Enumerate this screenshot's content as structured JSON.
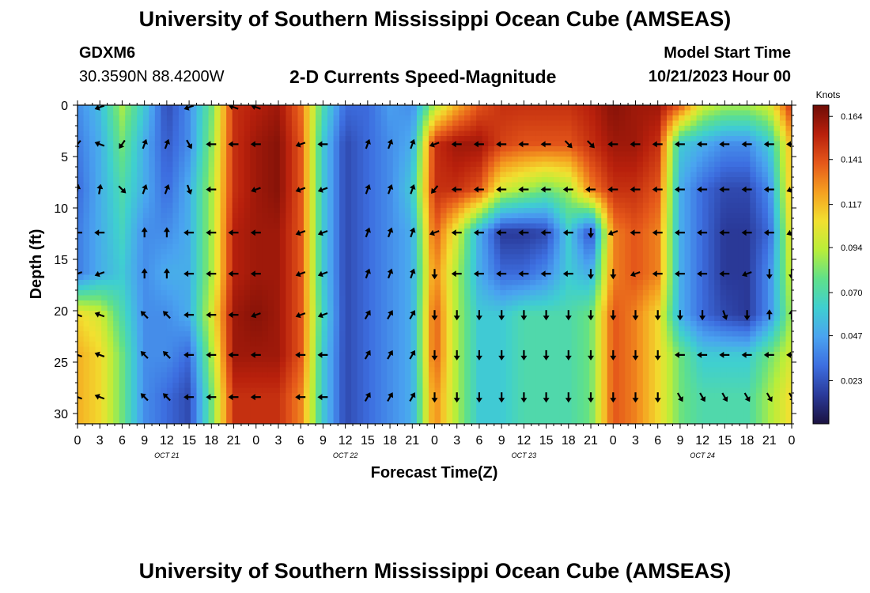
{
  "header": {
    "title": "University of Southern Mississippi Ocean Cube (AMSEAS)",
    "station_id": "GDXM6",
    "station_coords": "30.3590N  88.4200W",
    "subtitle": "2-D Currents Speed-Magnitude",
    "start_label": "Model Start Time",
    "start_value": "10/21/2023 Hour 00"
  },
  "footer": {
    "title": "University of Southern Mississippi Ocean Cube (AMSEAS)"
  },
  "chart_data": {
    "type": "heatmap",
    "title": "2-D Currents Speed-Magnitude",
    "xlabel": "Forecast Time(Z)",
    "ylabel": "Depth (ft)",
    "x_tick_labels": [
      "0",
      "3",
      "6",
      "9",
      "12",
      "15",
      "18",
      "21",
      "0",
      "3",
      "6",
      "9",
      "12",
      "15",
      "18",
      "21",
      "0",
      "3",
      "6",
      "9",
      "12",
      "15",
      "18",
      "21",
      "0",
      "3",
      "6",
      "9",
      "12",
      "15",
      "18",
      "21",
      "0"
    ],
    "date_labels": [
      "OCT 21",
      "OCT 22",
      "OCT 23",
      "OCT 24"
    ],
    "xlim_hours": [
      0,
      96
    ],
    "ylim_ft": [
      0,
      31
    ],
    "y_ticks": [
      0,
      5,
      10,
      15,
      20,
      25,
      30
    ],
    "colorbar": {
      "unit": "Knots",
      "ticks": [
        "0.164",
        "0.141",
        "0.117",
        "0.094",
        "0.070",
        "0.047",
        "0.023"
      ],
      "range": [
        0,
        0.17
      ],
      "colors": [
        "#1b1240",
        "#2a3a9a",
        "#3d6ee0",
        "#4aa3f0",
        "#3fcfd0",
        "#5fe08a",
        "#b8ee3a",
        "#f2e030",
        "#f5a020",
        "#e5581a",
        "#b8200c",
        "#6e0c06"
      ]
    },
    "depth_levels_ft": [
      0,
      3.8,
      8.2,
      12.4,
      16.4,
      20.4,
      24.3,
      28.4
    ],
    "time_hours": [
      0,
      3,
      6,
      9,
      12,
      15,
      18,
      21,
      24,
      27,
      30,
      33,
      36,
      39,
      42,
      45,
      48,
      51,
      54,
      57,
      60,
      63,
      66,
      69,
      72,
      75,
      78,
      81,
      84,
      87,
      90,
      93,
      96
    ],
    "speed_knots": [
      [
        0.04,
        0.055,
        0.09,
        0.06,
        0.02,
        0.04,
        0.08,
        0.15,
        0.155,
        0.16,
        0.135,
        0.07,
        0.03,
        0.03,
        0.045,
        0.04,
        0.09,
        0.12,
        0.14,
        0.15,
        0.15,
        0.15,
        0.15,
        0.155,
        0.165,
        0.16,
        0.16,
        0.14,
        0.1,
        0.09,
        0.09,
        0.1,
        0.15
      ],
      [
        0.035,
        0.05,
        0.08,
        0.05,
        0.025,
        0.04,
        0.085,
        0.15,
        0.16,
        0.165,
        0.14,
        0.06,
        0.02,
        0.03,
        0.04,
        0.05,
        0.15,
        0.16,
        0.16,
        0.145,
        0.14,
        0.14,
        0.14,
        0.15,
        0.16,
        0.16,
        0.15,
        0.06,
        0.05,
        0.04,
        0.04,
        0.06,
        0.12
      ],
      [
        0.03,
        0.05,
        0.07,
        0.05,
        0.03,
        0.05,
        0.09,
        0.15,
        0.16,
        0.165,
        0.14,
        0.06,
        0.02,
        0.03,
        0.04,
        0.06,
        0.15,
        0.15,
        0.14,
        0.1,
        0.09,
        0.08,
        0.09,
        0.13,
        0.15,
        0.15,
        0.14,
        0.05,
        0.03,
        0.02,
        0.02,
        0.04,
        0.12
      ],
      [
        0.035,
        0.05,
        0.065,
        0.04,
        0.04,
        0.05,
        0.09,
        0.155,
        0.16,
        0.16,
        0.14,
        0.06,
        0.02,
        0.03,
        0.04,
        0.05,
        0.14,
        0.1,
        0.05,
        0.015,
        0.015,
        0.02,
        0.06,
        0.02,
        0.13,
        0.14,
        0.13,
        0.05,
        0.03,
        0.015,
        0.015,
        0.03,
        0.11
      ],
      [
        0.035,
        0.05,
        0.06,
        0.04,
        0.05,
        0.05,
        0.09,
        0.155,
        0.16,
        0.16,
        0.14,
        0.06,
        0.02,
        0.03,
        0.04,
        0.05,
        0.13,
        0.09,
        0.05,
        0.03,
        0.03,
        0.04,
        0.06,
        0.05,
        0.13,
        0.14,
        0.13,
        0.05,
        0.03,
        0.015,
        0.015,
        0.04,
        0.1
      ],
      [
        0.11,
        0.1,
        0.07,
        0.04,
        0.04,
        0.05,
        0.1,
        0.16,
        0.165,
        0.16,
        0.14,
        0.065,
        0.02,
        0.03,
        0.04,
        0.05,
        0.14,
        0.09,
        0.06,
        0.06,
        0.07,
        0.07,
        0.07,
        0.08,
        0.14,
        0.13,
        0.11,
        0.05,
        0.03,
        0.02,
        0.015,
        0.04,
        0.09
      ],
      [
        0.12,
        0.11,
        0.08,
        0.04,
        0.04,
        0.03,
        0.09,
        0.16,
        0.16,
        0.16,
        0.14,
        0.06,
        0.02,
        0.03,
        0.04,
        0.05,
        0.14,
        0.09,
        0.06,
        0.06,
        0.07,
        0.07,
        0.07,
        0.08,
        0.14,
        0.13,
        0.11,
        0.08,
        0.06,
        0.06,
        0.06,
        0.08,
        0.1
      ],
      [
        0.12,
        0.11,
        0.08,
        0.04,
        0.03,
        0.02,
        0.08,
        0.15,
        0.15,
        0.15,
        0.13,
        0.06,
        0.02,
        0.03,
        0.04,
        0.05,
        0.13,
        0.09,
        0.06,
        0.06,
        0.07,
        0.07,
        0.07,
        0.08,
        0.14,
        0.13,
        0.11,
        0.08,
        0.07,
        0.07,
        0.07,
        0.09,
        0.11
      ]
    ],
    "arrow_rows": [
      {
        "depth_ft": 0.2,
        "dirs": {
          "1": 200,
          "5": 200,
          "7": 160,
          "8": 160
        }
      },
      {
        "depth_ft": 3.8,
        "dirs": {
          "0": 230,
          "1": 160,
          "2": 235,
          "3": 70,
          "4": 70,
          "5": 300,
          "6": 180,
          "7": 180,
          "8": 180,
          "10": 200,
          "11": 180,
          "13": 70,
          "14": 70,
          "15": 70,
          "16": 200,
          "17": 180,
          "18": 180,
          "19": 180,
          "20": 180,
          "21": 180,
          "22": 315,
          "23": 315,
          "24": 180,
          "25": 180,
          "26": 180,
          "27": 180,
          "28": 180,
          "29": 180,
          "30": 180,
          "31": 180,
          "32": 180
        }
      },
      {
        "depth_ft": 8.2,
        "dirs": {
          "0": 80,
          "1": 80,
          "2": 315,
          "3": 70,
          "4": 70,
          "5": 290,
          "6": 180,
          "8": 200,
          "10": 200,
          "11": 200,
          "13": 70,
          "14": 70,
          "15": 70,
          "16": 230,
          "17": 180,
          "18": 180,
          "19": 180,
          "20": 180,
          "21": 180,
          "22": 180,
          "23": 180,
          "24": 180,
          "25": 180,
          "26": 180,
          "27": 180,
          "28": 180,
          "29": 180,
          "30": 180,
          "31": 180,
          "32": 200
        }
      },
      {
        "depth_ft": 12.4,
        "dirs": {
          "0": 180,
          "1": 180,
          "3": 90,
          "4": 90,
          "5": 180,
          "6": 180,
          "7": 180,
          "8": 180,
          "10": 200,
          "11": 200,
          "13": 70,
          "14": 70,
          "15": 70,
          "16": 200,
          "17": 180,
          "18": 180,
          "19": 180,
          "20": 180,
          "21": 180,
          "22": 180,
          "23": 270,
          "24": 200,
          "25": 180,
          "26": 180,
          "27": 180,
          "28": 180,
          "29": 180,
          "30": 180,
          "31": 180,
          "32": 200
        }
      },
      {
        "depth_ft": 16.4,
        "dirs": {
          "0": 200,
          "1": 200,
          "3": 90,
          "4": 90,
          "5": 180,
          "6": 180,
          "7": 180,
          "8": 180,
          "10": 200,
          "11": 200,
          "13": 70,
          "14": 70,
          "15": 70,
          "16": 270,
          "17": 180,
          "18": 180,
          "19": 180,
          "20": 180,
          "21": 180,
          "22": 180,
          "23": 270,
          "24": 270,
          "25": 200,
          "26": 180,
          "27": 180,
          "28": 180,
          "29": 180,
          "30": 200,
          "31": 270,
          "32": 270
        }
      },
      {
        "depth_ft": 20.4,
        "dirs": {
          "0": 160,
          "1": 160,
          "3": 135,
          "4": 135,
          "5": 180,
          "6": 180,
          "7": 180,
          "8": 200,
          "10": 200,
          "11": 200,
          "13": 60,
          "14": 60,
          "15": 60,
          "16": 270,
          "17": 270,
          "18": 270,
          "19": 270,
          "20": 270,
          "21": 270,
          "22": 270,
          "23": 270,
          "24": 270,
          "25": 270,
          "26": 270,
          "27": 270,
          "28": 270,
          "29": 290,
          "30": 270,
          "31": 90,
          "32": 90
        }
      },
      {
        "depth_ft": 24.3,
        "dirs": {
          "0": 160,
          "1": 160,
          "3": 135,
          "4": 135,
          "5": 180,
          "6": 180,
          "7": 180,
          "8": 180,
          "10": 180,
          "11": 180,
          "13": 60,
          "14": 60,
          "15": 60,
          "16": 270,
          "17": 270,
          "18": 270,
          "19": 270,
          "20": 270,
          "21": 270,
          "22": 270,
          "23": 270,
          "24": 270,
          "25": 270,
          "26": 270,
          "27": 180,
          "28": 180,
          "29": 180,
          "30": 180,
          "31": 180,
          "32": 180
        }
      },
      {
        "depth_ft": 28.4,
        "dirs": {
          "0": 160,
          "1": 160,
          "3": 135,
          "4": 135,
          "5": 180,
          "6": 180,
          "7": 180,
          "8": 180,
          "10": 180,
          "11": 180,
          "13": 60,
          "14": 60,
          "15": 60,
          "16": 270,
          "17": 270,
          "18": 270,
          "19": 270,
          "20": 270,
          "21": 270,
          "22": 270,
          "23": 270,
          "24": 270,
          "25": 270,
          "26": 270,
          "27": 300,
          "28": 300,
          "29": 300,
          "30": 300,
          "31": 300,
          "32": 300
        }
      }
    ]
  }
}
